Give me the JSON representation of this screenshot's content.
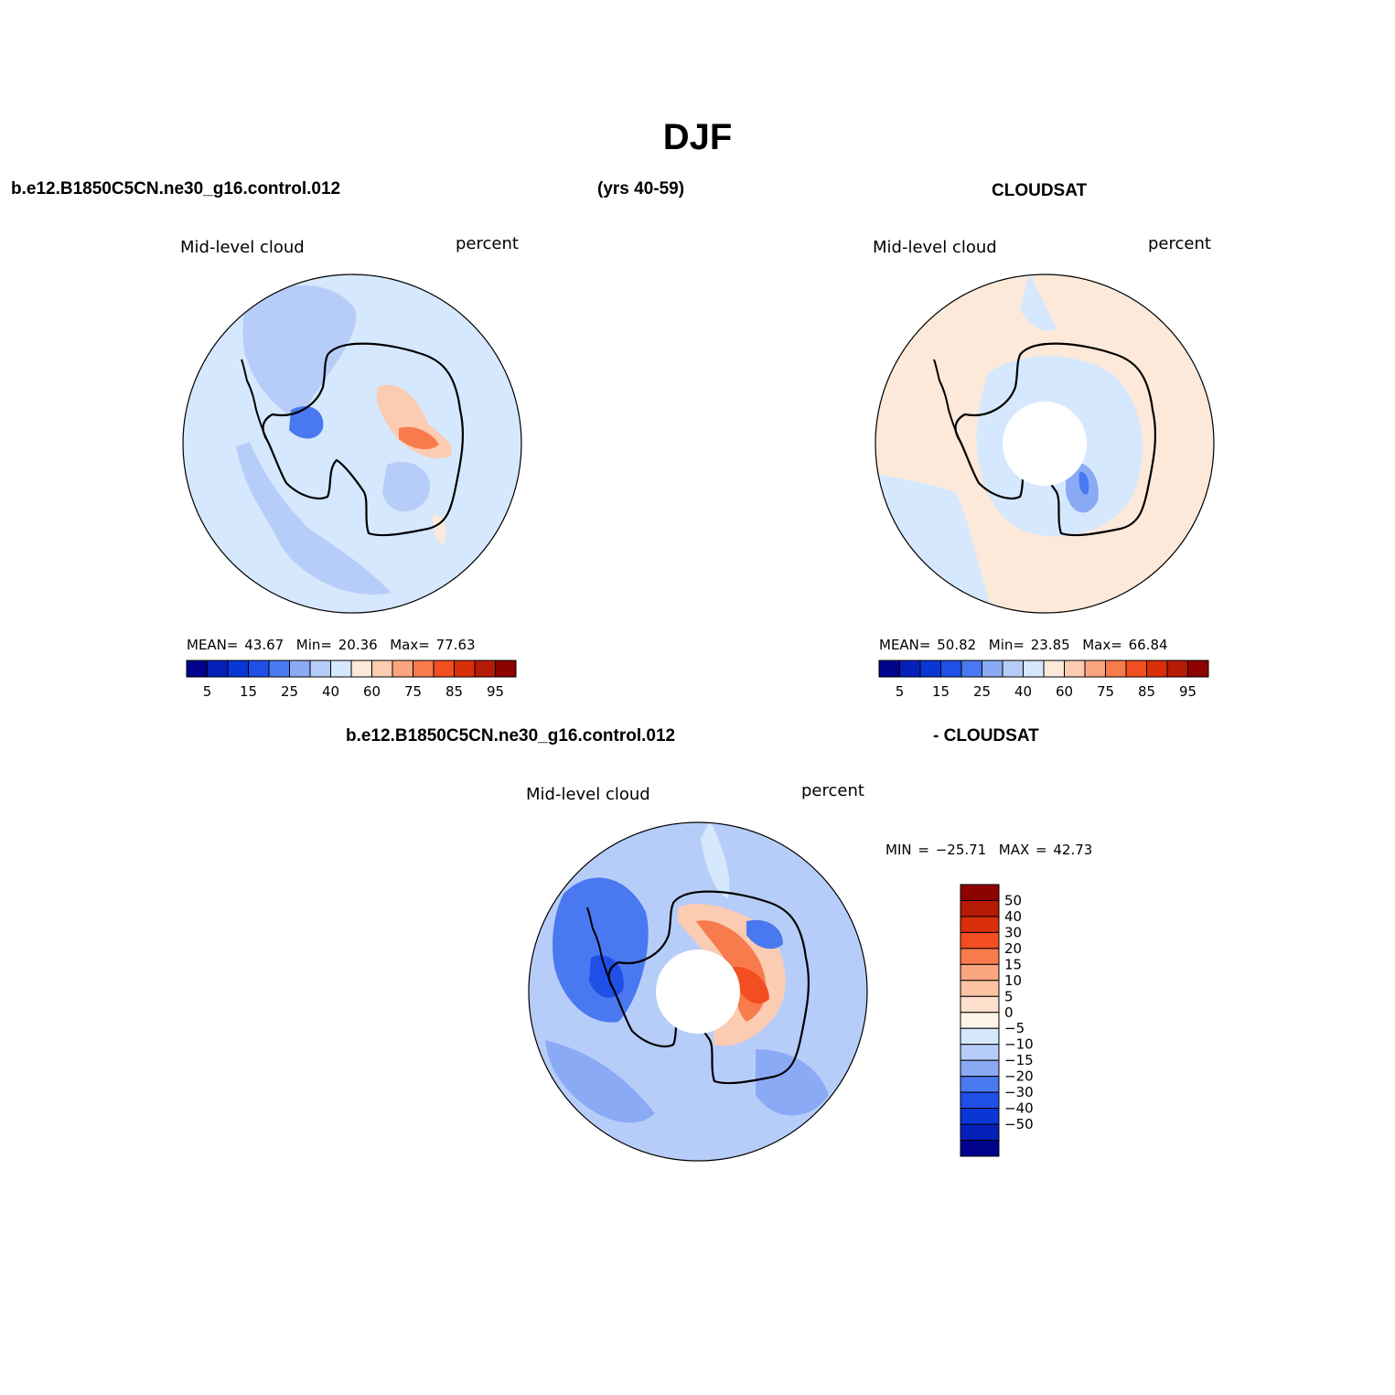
{
  "title": "DJF",
  "header": {
    "case_name": "b.e12.B1850C5CN.ne30_g16.control.012",
    "years": "(yrs 40-59)",
    "obs_name": "CLOUDSAT",
    "diff_case": "b.e12.B1850C5CN.ne30_g16.control.012",
    "diff_obs": "- CLOUDSAT"
  },
  "colors": {
    "abs_scale": [
      "#00028c",
      "#0520b8",
      "#0a36d6",
      "#1f4fe6",
      "#4a78f0",
      "#8aaaf5",
      "#b7cdf9",
      "#d6e8fd",
      "#fde9d9",
      "#fbcbb2",
      "#f9a57f",
      "#f87b4d",
      "#f24e22",
      "#d92f0a",
      "#b61b05",
      "#8c0300"
    ],
    "diff_scale": [
      "#00028c",
      "#0520b8",
      "#0a36d6",
      "#1f4fe6",
      "#4a78f0",
      "#8aaaf5",
      "#b7cdf9",
      "#d6e8fd",
      "#fef3e8",
      "#fde0cc",
      "#fbc3a3",
      "#f9a57f",
      "#f87b4d",
      "#f24e22",
      "#d92f0a",
      "#b61b05",
      "#8c0300"
    ]
  },
  "chart_data": [
    {
      "type": "heatmap",
      "projection": "south polar stereographic",
      "variable": "Mid-level cloud",
      "units": "percent",
      "stats": {
        "mean_label": "MEAN=",
        "mean": "43.67",
        "min_label": "Min=",
        "min": "20.36",
        "max_label": "Max=",
        "max": "77.63"
      },
      "colorbar": {
        "levels": [
          5,
          10,
          15,
          20,
          25,
          30,
          35,
          40,
          50,
          60,
          70,
          75,
          80,
          85,
          90,
          95
        ],
        "tick_labels": [
          "5",
          "15",
          "25",
          "40",
          "60",
          "75",
          "85",
          "95"
        ]
      },
      "dominant_level": "35-40",
      "notable_features": [
        "low values (15-25) over Weddell Sea region",
        "high values (70-80) over East Antarctic interior"
      ]
    },
    {
      "type": "heatmap",
      "projection": "south polar stereographic",
      "variable": "Mid-level cloud",
      "units": "percent",
      "stats": {
        "mean_label": "MEAN=",
        "mean": "50.82",
        "min_label": "Min=",
        "min": "23.85",
        "max_label": "Max=",
        "max": "66.84"
      },
      "colorbar": {
        "levels": [
          5,
          10,
          15,
          20,
          25,
          30,
          35,
          40,
          50,
          60,
          70,
          75,
          80,
          85,
          90,
          95
        ],
        "tick_labels": [
          "5",
          "15",
          "25",
          "40",
          "60",
          "75",
          "85",
          "95"
        ]
      },
      "dominant_level": "50-60",
      "missing_data": "polar cap",
      "notable_features": [
        "lower values (20-35) over interior Antarctica"
      ]
    },
    {
      "type": "heatmap",
      "projection": "south polar stereographic",
      "variable": "Mid-level cloud",
      "units": "percent",
      "stats": {
        "min_label": "MIN =",
        "min": "−25.71",
        "max_label": "MAX =",
        "max": "42.73"
      },
      "colorbar": {
        "levels": [
          -50,
          -40,
          -30,
          -20,
          -15,
          -10,
          -5,
          0,
          5,
          10,
          15,
          20,
          30,
          40,
          50
        ],
        "tick_labels": [
          "50",
          "40",
          "30",
          "20",
          "15",
          "10",
          "5",
          "0",
          "−5",
          "−10",
          "−15",
          "−20",
          "−30",
          "−40",
          "−50"
        ]
      },
      "dominant_level": "-10 to -5",
      "missing_data": "polar cap",
      "notable_features": [
        "positive differences (20-40) over East Antarctic interior",
        "negative differences (-20 to -30) near Weddell Sea and Antarctic Peninsula"
      ]
    }
  ]
}
